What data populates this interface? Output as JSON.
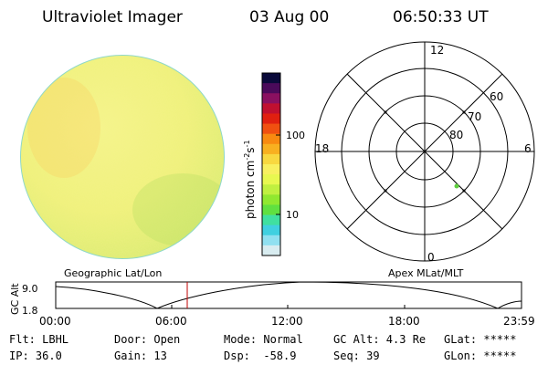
{
  "header": {
    "instrument": "Ultraviolet Imager",
    "date": "03 Aug 00",
    "time": "06:50:33 UT"
  },
  "colorbar": {
    "units": "photon cm",
    "exp1": "-2",
    "s_label": "s",
    "exp2": "-1",
    "tick_100": "100",
    "tick_10": "10",
    "colors": [
      "#0a0a3a",
      "#4a0a5a",
      "#8a1060",
      "#c01030",
      "#e02010",
      "#f05010",
      "#f88a10",
      "#f8b020",
      "#f8d840",
      "#f8f060",
      "#e8f850",
      "#c0f040",
      "#90e830",
      "#60e040",
      "#40e0a0",
      "#40d0e0",
      "#90e0f0",
      "#d8ecf0"
    ]
  },
  "polar": {
    "labels": {
      "top": "12",
      "bottom": "0",
      "left": "18",
      "right": "6"
    },
    "rings": [
      "60",
      "70",
      "80"
    ]
  },
  "timeline": {
    "left_title": "Geographic Lat/Lon",
    "right_title": "Apex MLat/MLT",
    "axis_label": "GC Alt",
    "y_top": "9.0",
    "y_bottom": "1.8",
    "x_ticks": [
      "00:00",
      "06:00",
      "12:00",
      "18:00",
      "23:59"
    ],
    "current_time_color": "#c00000"
  },
  "status": {
    "flt": "Flt: LBHL",
    "ip": "IP: 36.0",
    "door": "Door: Open",
    "gain": "Gain: 13",
    "mode": "Mode: Normal",
    "dsp": "Dsp:  -58.9",
    "gcalt": "GC Alt: 4.3 Re",
    "seq": "Seq: 39",
    "glat": "GLat: *****",
    "glon": "GLon: *****"
  }
}
